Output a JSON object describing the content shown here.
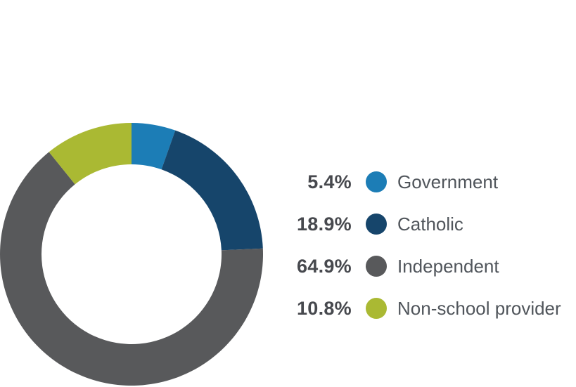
{
  "page": {
    "background_color": "#FFFFFF"
  },
  "chart_data": {
    "type": "pie",
    "subtype": "donut",
    "title": "",
    "categories": [
      "Government",
      "Catholic",
      "Independent",
      "Non-school provider"
    ],
    "values": [
      5.4,
      18.9,
      64.9,
      10.8
    ],
    "value_labels": [
      "5.4%",
      "18.9%",
      "64.9%",
      "10.8%"
    ],
    "colors": [
      "#1C7DB6",
      "#16456B",
      "#58595B",
      "#AAB933"
    ],
    "text_color": "#4C5056",
    "legend_position": "right",
    "start_angle_deg": 0,
    "direction": "clockwise",
    "inner_radius_ratio": 0.685,
    "items": [
      {
        "value_label": "5.4%",
        "label": "Government"
      },
      {
        "value_label": "18.9%",
        "label": "Catholic"
      },
      {
        "value_label": "64.9%",
        "label": "Independent"
      },
      {
        "value_label": "10.8%",
        "label": "Non-school provider"
      }
    ]
  }
}
